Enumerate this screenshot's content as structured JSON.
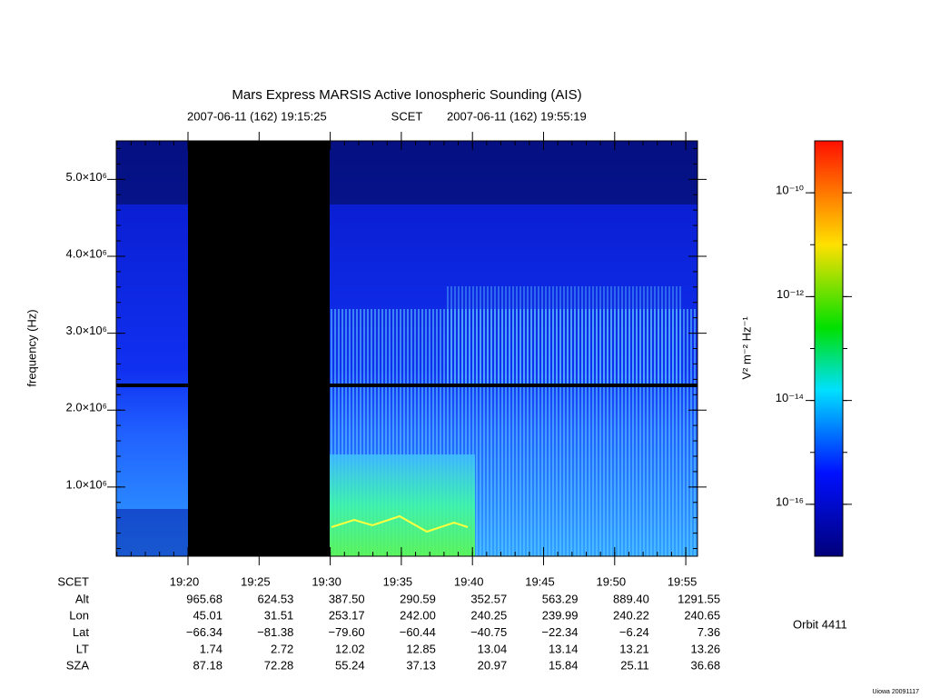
{
  "chart_data": {
    "type": "spectrogram",
    "title": "Mars Express MARSIS Active Ionospheric Sounding (AIS)",
    "start_time": "2007-06-11 (162) 19:15:25",
    "time_label": "SCET",
    "end_time": "2007-06-11 (162) 19:55:19",
    "ylabel": "frequency (Hz)",
    "ylim": [
      100000,
      5500000
    ],
    "yticks": [
      {
        "value": 1000000,
        "label": "1.0×10⁶"
      },
      {
        "value": 2000000,
        "label": "2.0×10⁶"
      },
      {
        "value": 3000000,
        "label": "3.0×10⁶"
      },
      {
        "value": 4000000,
        "label": "4.0×10⁶"
      },
      {
        "value": 5000000,
        "label": "5.0×10⁶"
      }
    ],
    "categories": [
      "19:20",
      "19:25",
      "19:30",
      "19:35",
      "19:40",
      "19:45",
      "19:50",
      "19:55"
    ],
    "row_label": "SCET",
    "ephemeris": [
      {
        "name": "Alt",
        "values": [
          "965.68",
          "624.53",
          "387.50",
          "290.59",
          "352.57",
          "563.29",
          "889.40",
          "1291.55"
        ]
      },
      {
        "name": "Lon",
        "values": [
          "45.01",
          "31.51",
          "253.17",
          "242.00",
          "240.25",
          "239.99",
          "240.22",
          "240.65"
        ]
      },
      {
        "name": "Lat",
        "values": [
          "−66.34",
          "−81.38",
          "−79.60",
          "−60.44",
          "−40.75",
          "−22.34",
          "−6.24",
          "7.36"
        ]
      },
      {
        "name": "LT",
        "values": [
          "1.74",
          "2.72",
          "12.02",
          "12.85",
          "13.04",
          "13.14",
          "13.21",
          "13.26"
        ]
      },
      {
        "name": "SZA",
        "values": [
          "87.18",
          "72.28",
          "55.24",
          "37.13",
          "20.97",
          "15.84",
          "25.11",
          "36.68"
        ]
      }
    ],
    "colorbar": {
      "label": "V² m⁻² Hz⁻¹",
      "log_scale": true,
      "lim": [
        1e-17,
        1e-09
      ],
      "ticks": [
        {
          "value": 1e-10,
          "label": "10⁻¹⁰"
        },
        {
          "value": 1e-12,
          "label": "10⁻¹²"
        },
        {
          "value": 1e-14,
          "label": "10⁻¹⁴"
        },
        {
          "value": 1e-16,
          "label": "10⁻¹⁶"
        }
      ]
    },
    "orbit": "Orbit 4411",
    "credit": "Uiowa 20091117"
  }
}
